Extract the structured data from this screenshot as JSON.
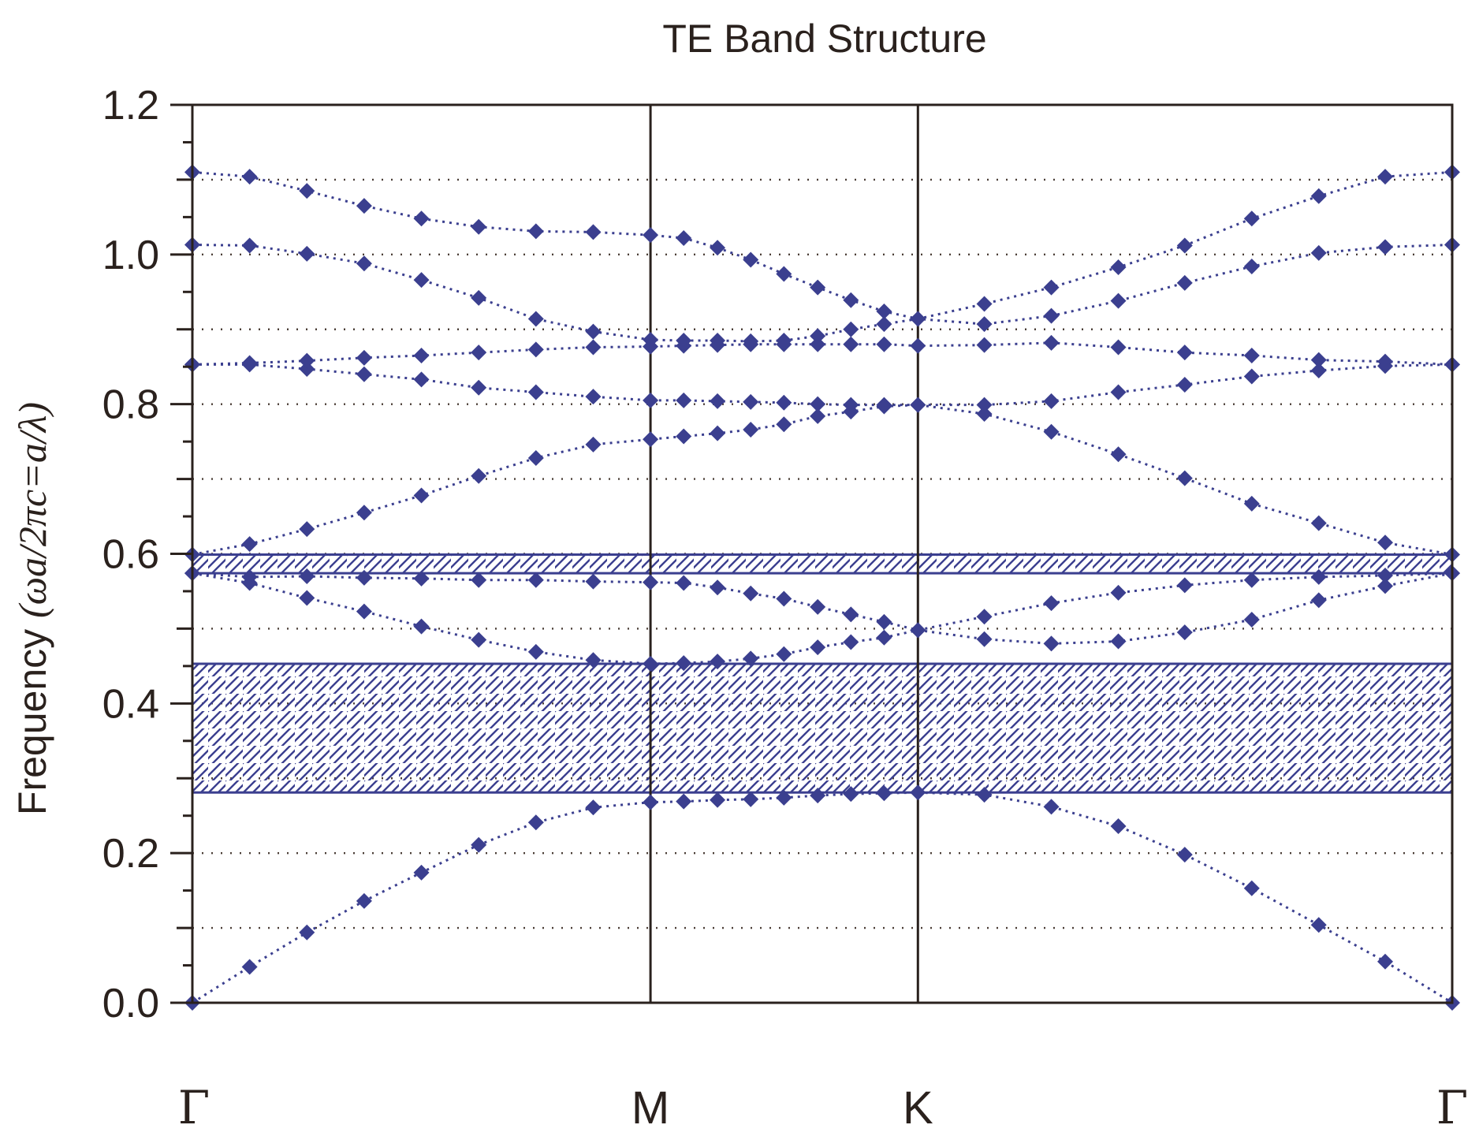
{
  "chart_data": {
    "type": "scatter",
    "title": "TE Band Structure",
    "ylabel": "Frequency (ωa/2πc=a/λ)",
    "ylabel_parts": {
      "plain": "Frequency ",
      "math": "(ωa/2πc=a/λ)"
    },
    "xlabel": "",
    "ylim": [
      0,
      1.2
    ],
    "yticks": [
      "0.0",
      "0.2",
      "0.4",
      "0.6",
      "0.8",
      "1.0",
      "1.2"
    ],
    "ytick_values": [
      0,
      0.2,
      0.4,
      0.6,
      0.8,
      1.0,
      1.2
    ],
    "xlim": [
      0,
      22
    ],
    "xticks": [
      {
        "label": "Γ",
        "x": 0
      },
      {
        "label": "M",
        "x": 8
      },
      {
        "label": "K",
        "x": 12.67
      },
      {
        "label": "Γ",
        "x": 22
      }
    ],
    "grid": "dotted horizontal",
    "marker": "diamond",
    "colors": {
      "series": "#3b3f8f",
      "axis": "#2a211d",
      "gap": "#3b3f8f"
    },
    "band_gaps": [
      {
        "ymin": 0.281,
        "ymax": 0.453
      },
      {
        "ymin": 0.574,
        "ymax": 0.599
      }
    ],
    "x": [
      0,
      1,
      2,
      3,
      4,
      5,
      6,
      7,
      8,
      8.58,
      9.17,
      9.75,
      10.33,
      10.92,
      11.5,
      12.08,
      12.67,
      13.83,
      15,
      16.17,
      17.33,
      18.5,
      19.67,
      20.83,
      22
    ],
    "series": [
      {
        "values": [
          0.0,
          0.048,
          0.094,
          0.136,
          0.174,
          0.211,
          0.241,
          0.261,
          0.268,
          0.269,
          0.271,
          0.272,
          0.274,
          0.277,
          0.279,
          0.28,
          0.281,
          0.278,
          0.262,
          0.236,
          0.198,
          0.153,
          0.104,
          0.055,
          0.0
        ]
      },
      {
        "values": [
          0.574,
          0.561,
          0.541,
          0.523,
          0.503,
          0.485,
          0.469,
          0.458,
          0.453,
          0.454,
          0.456,
          0.46,
          0.466,
          0.475,
          0.482,
          0.488,
          0.498,
          0.486,
          0.48,
          0.483,
          0.495,
          0.512,
          0.538,
          0.557,
          0.574
        ]
      },
      {
        "values": [
          0.574,
          0.569,
          0.57,
          0.568,
          0.567,
          0.565,
          0.565,
          0.563,
          0.562,
          0.561,
          0.555,
          0.547,
          0.54,
          0.529,
          0.519,
          0.509,
          0.498,
          0.516,
          0.534,
          0.548,
          0.558,
          0.565,
          0.569,
          0.571,
          0.574
        ]
      },
      {
        "values": [
          0.599,
          0.613,
          0.633,
          0.655,
          0.678,
          0.704,
          0.728,
          0.746,
          0.753,
          0.757,
          0.761,
          0.766,
          0.773,
          0.784,
          0.79,
          0.797,
          0.799,
          0.787,
          0.763,
          0.733,
          0.701,
          0.667,
          0.641,
          0.615,
          0.599
        ]
      },
      {
        "values": [
          0.853,
          0.853,
          0.847,
          0.84,
          0.833,
          0.822,
          0.816,
          0.81,
          0.805,
          0.805,
          0.804,
          0.803,
          0.802,
          0.8,
          0.799,
          0.799,
          0.799,
          0.799,
          0.804,
          0.816,
          0.826,
          0.837,
          0.845,
          0.851,
          0.853
        ]
      },
      {
        "values": [
          0.853,
          0.855,
          0.858,
          0.862,
          0.865,
          0.869,
          0.873,
          0.876,
          0.877,
          0.878,
          0.879,
          0.88,
          0.88,
          0.88,
          0.88,
          0.88,
          0.878,
          0.879,
          0.882,
          0.876,
          0.869,
          0.865,
          0.859,
          0.857,
          0.853
        ]
      },
      {
        "values": [
          1.013,
          1.012,
          1.001,
          0.988,
          0.966,
          0.942,
          0.914,
          0.897,
          0.886,
          0.885,
          0.885,
          0.884,
          0.885,
          0.891,
          0.9,
          0.907,
          0.914,
          0.907,
          0.918,
          0.938,
          0.962,
          0.984,
          1.002,
          1.01,
          1.013
        ]
      },
      {
        "values": [
          1.11,
          1.104,
          1.085,
          1.065,
          1.048,
          1.037,
          1.031,
          1.03,
          1.026,
          1.022,
          1.009,
          0.993,
          0.974,
          0.956,
          0.939,
          0.924,
          0.914,
          0.934,
          0.956,
          0.983,
          1.012,
          1.048,
          1.078,
          1.104,
          1.11
        ]
      }
    ]
  }
}
